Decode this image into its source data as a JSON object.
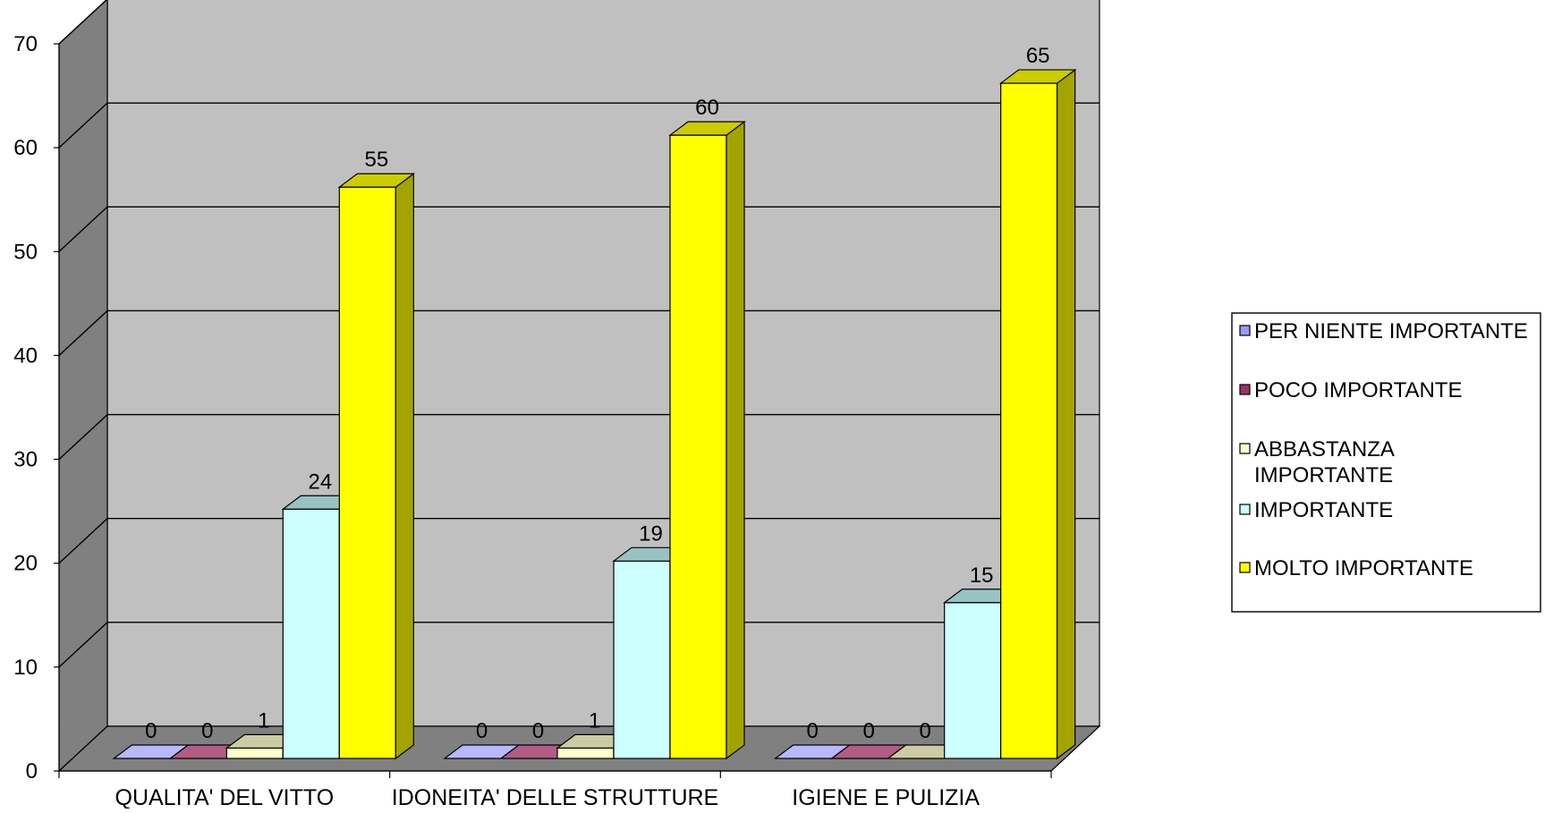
{
  "chart_data": {
    "type": "bar",
    "categories": [
      "QUALITA' DEL VITTO",
      "IDONEITA' DELLE STRUTTURE",
      "IGIENE E PULIZIA"
    ],
    "series": [
      {
        "name": "PER NIENTE IMPORTANTE",
        "values": [
          0,
          0,
          0
        ],
        "color": "#9999FF",
        "side_color": "#5C5C99",
        "top_color": "#B8B8FF"
      },
      {
        "name": "POCO IMPORTANTE",
        "values": [
          0,
          0,
          0
        ],
        "color": "#993366",
        "side_color": "#5C1F3D",
        "top_color": "#B35C85"
      },
      {
        "name": "ABBASTANZA IMPORTANTE",
        "values": [
          1,
          1,
          0
        ],
        "color": "#FFFFCC",
        "side_color": "#99997A",
        "top_color": "#CCCCA3"
      },
      {
        "name": "IMPORTANTE",
        "values": [
          24,
          19,
          15
        ],
        "color": "#CCFFFF",
        "side_color": "#7A9999",
        "top_color": "#99C2C2"
      },
      {
        "name": "MOLTO IMPORTANTE",
        "values": [
          55,
          60,
          65
        ],
        "color": "#FFFF00",
        "side_color": "#A3A300",
        "top_color": "#CCCC00"
      }
    ],
    "ylim": [
      0,
      70
    ],
    "yticks": [
      "0",
      "10",
      "20",
      "30",
      "40",
      "50",
      "60",
      "70"
    ],
    "grid": true,
    "legend_position": "right",
    "wall_color": "#C0C0C0",
    "side_wall_color": "#808080",
    "floor_color": "#808080"
  }
}
